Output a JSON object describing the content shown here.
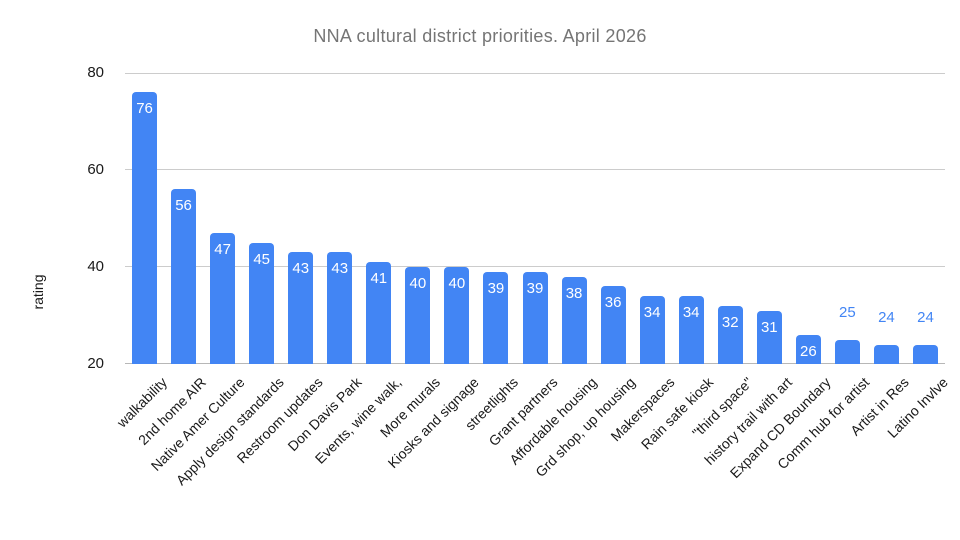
{
  "chart_data": {
    "type": "bar",
    "title": "NNA cultural district priorities. April 2026",
    "xlabel": "",
    "ylabel": "rating",
    "ylim": [
      20,
      80
    ],
    "yticks": [
      20,
      40,
      60,
      80
    ],
    "grid": true,
    "legend": "none",
    "categories": [
      "walkability",
      "2nd home AIR",
      "Native Amer Culture",
      "Apply design standards",
      "Restroom updates",
      "Don Davis Park",
      "Events, wine walk,",
      "More murals",
      "Kiosks and signage",
      "streetlights",
      "Grant partners",
      "Affordable housing",
      "Grd shop, up housing",
      "Makerspaces",
      "Rain safe kiosk",
      "\"third space\"",
      "history trail with art",
      "Expand CD Boundary",
      "Comm hub for artist",
      "Artist in Res",
      "Latino Invlve"
    ],
    "values": [
      76,
      56,
      47,
      45,
      43,
      43,
      41,
      40,
      40,
      39,
      39,
      38,
      36,
      34,
      34,
      32,
      31,
      26,
      25,
      24,
      24
    ]
  },
  "colors": {
    "background": "#ffffff",
    "bar": "#4285f4",
    "title_text": "#757575",
    "axis_text": "#1a1a1a",
    "gridline": "#cccccc",
    "baseline": "#b7b7b7",
    "value_label_inside": "#ffffff",
    "value_label_outside": "#4285f4"
  }
}
